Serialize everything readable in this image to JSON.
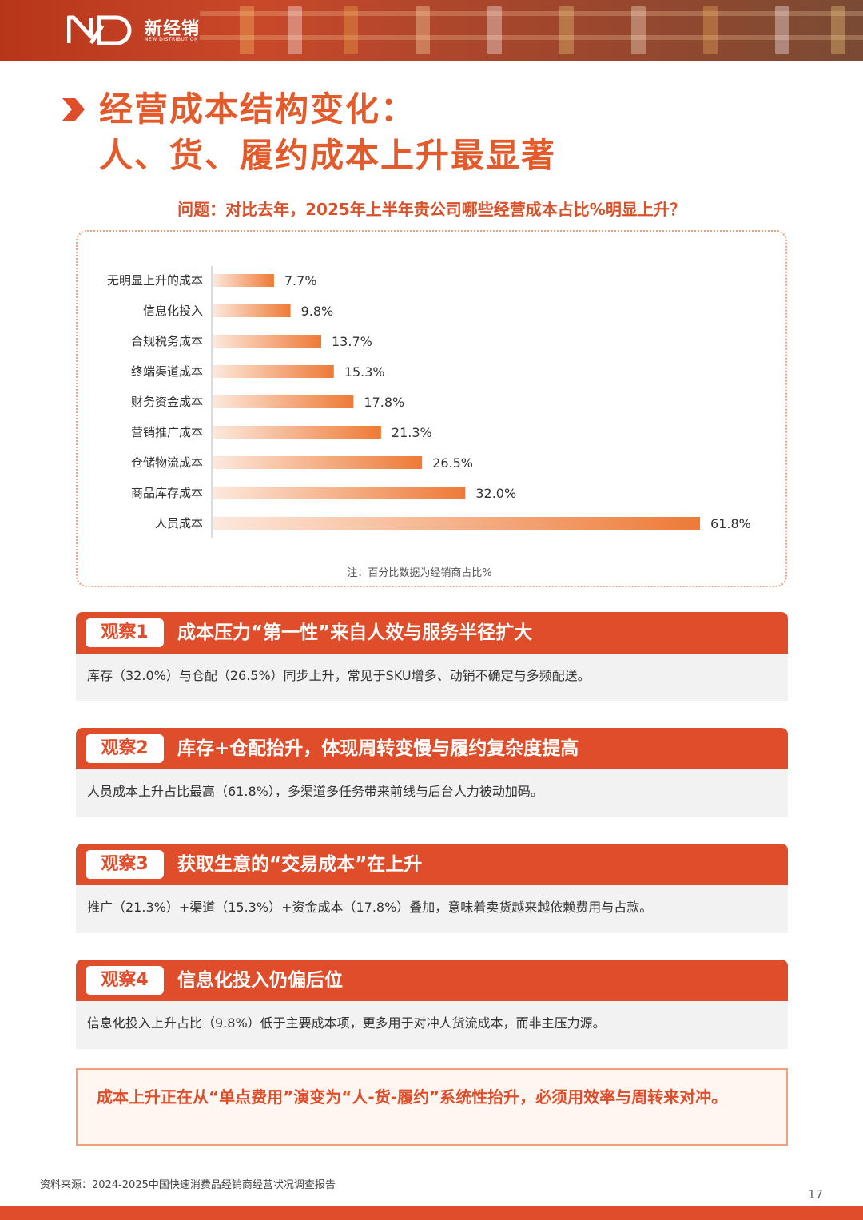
{
  "brand": {
    "name_cn": "新经销",
    "name_en": "NEW DISTRIBUTION"
  },
  "title": {
    "line1": "经营成本结构变化：",
    "line2": "人、货、履约成本上升最显著"
  },
  "question": "问题：对比去年，2025年上半年贵公司哪些经营成本占比%明显上升？",
  "colors": {
    "accent": "#e04d2a",
    "bar": "#ef8a4a",
    "title": "#e45a2a"
  },
  "chart_data": {
    "type": "bar",
    "orientation": "horizontal",
    "categories": [
      "无明显上升的成本",
      "信息化投入",
      "合规税务成本",
      "终端渠道成本",
      "财务资金成本",
      "营销推广成本",
      "仓储物流成本",
      "商品库存成本",
      "人员成本"
    ],
    "values": [
      7.7,
      9.8,
      13.7,
      15.3,
      17.8,
      21.3,
      26.5,
      32.0,
      61.8
    ],
    "value_labels": [
      "7.7%",
      "9.8%",
      "13.7%",
      "15.3%",
      "17.8%",
      "21.3%",
      "26.5%",
      "32.0%",
      "61.8%"
    ],
    "unit": "%",
    "xlim": [
      0,
      62
    ],
    "grid": false,
    "note": "注：百分比数据为经销商占比%"
  },
  "observations": [
    {
      "tag": "观察1",
      "title": "成本压力“第一性”来自人效与服务半径扩大",
      "body": "库存（32.0%）与仓配（26.5%）同步上升，常见于SKU增多、动销不确定与多频配送。"
    },
    {
      "tag": "观察2",
      "title": "库存+仓配抬升，体现周转变慢与履约复杂度提高",
      "body": "人员成本上升占比最高（61.8%），多渠道多任务带来前线与后台人力被动加码。"
    },
    {
      "tag": "观察3",
      "title": "获取生意的“交易成本”在上升",
      "body": "推广（21.3%）+渠道（15.3%）+资金成本（17.8%）叠加，意味着卖货越来越依赖费用与占款。"
    },
    {
      "tag": "观察4",
      "title": "信息化投入仍偏后位",
      "body": "信息化投入上升占比（9.8%）低于主要成本项，更多用于对冲人货流成本，而非主压力源。"
    }
  ],
  "conclusion": "成本上升正在从“单点费用”演变为“人-货-履约”系统性抬升，必须用效率与周转来对冲。",
  "source": "资料来源：2024-2025中国快速消费品经销商经营状况调查报告",
  "page_number": "17"
}
